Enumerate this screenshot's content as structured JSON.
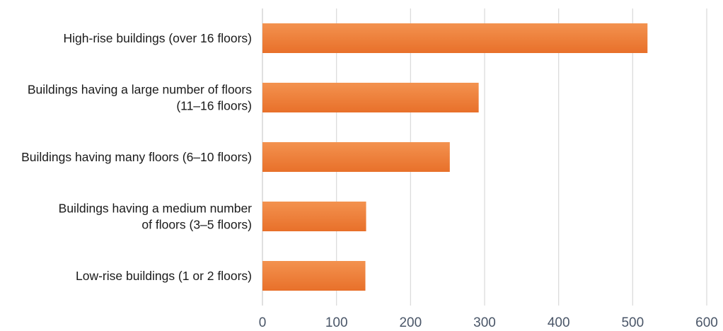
{
  "chart_data": {
    "type": "bar",
    "orientation": "horizontal",
    "categories": [
      [
        "High-rise buildings (over 16 floors)"
      ],
      [
        "Buildings having a large number of floors",
        "(11–16 floors)"
      ],
      [
        "Buildings having many floors (6–10 floors)"
      ],
      [
        "Buildings having a medium number",
        "of floors (3–5 floors)"
      ],
      [
        "Low-rise buildings (1 or 2 floors)"
      ]
    ],
    "values": [
      520,
      292,
      253,
      140,
      139
    ],
    "xlim": [
      0,
      600
    ],
    "xticks": [
      "0",
      "100",
      "200",
      "300",
      "400",
      "500",
      "600"
    ],
    "grid": true,
    "bar_color": "#ec7a2e",
    "bar_color_light": "#f3924f"
  }
}
